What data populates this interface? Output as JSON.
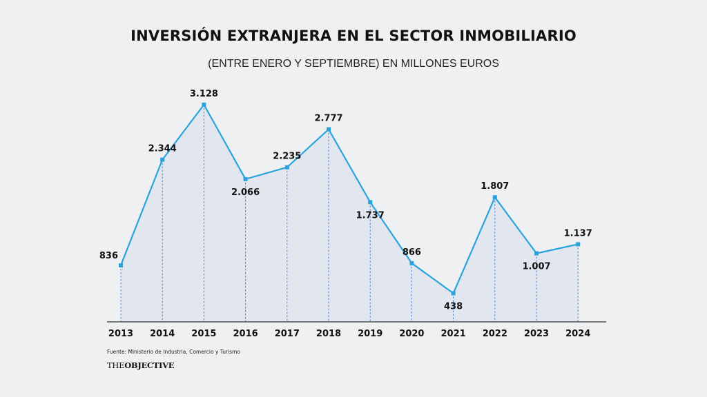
{
  "chart_data": {
    "type": "area",
    "title": "INVERSIÓN EXTRANJERA EN EL SECTOR INMOBILIARIO",
    "subtitle": "(ENTRE ENERO Y SEPTIEMBRE) EN MILLONES EUROS",
    "xlabel": "",
    "ylabel": "",
    "categories": [
      "2013",
      "2014",
      "2015",
      "2016",
      "2017",
      "2018",
      "2019",
      "2020",
      "2021",
      "2022",
      "2023",
      "2024"
    ],
    "series": [
      {
        "name": "Inversión extranjera",
        "values": [
          836,
          2344,
          3128,
          2066,
          2235,
          2777,
          1737,
          866,
          438,
          1807,
          1007,
          1137
        ],
        "labels": [
          "836",
          "2.344",
          "3.128",
          "2.066",
          "2.235",
          "2.777",
          "1.737",
          "866",
          "438",
          "1.807",
          "1.007",
          "1.137"
        ],
        "label_positions": [
          "left",
          "above",
          "above",
          "below",
          "above",
          "above",
          "below",
          "above",
          "below",
          "above",
          "below",
          "above"
        ]
      }
    ],
    "ylim": [
      0,
      3128
    ],
    "grid": false,
    "legend": "none",
    "colors": {
      "line": "#29a3dc",
      "fill": "#e1e6ef",
      "dropline": "#4a7fc8",
      "axis": "#333333",
      "text": "#111111"
    }
  },
  "footer": {
    "source": "Fuente: Ministerio de Industria, Comercio y Turismo",
    "brand_prefix": "THE",
    "brand_main": "OBJECTIVE"
  }
}
